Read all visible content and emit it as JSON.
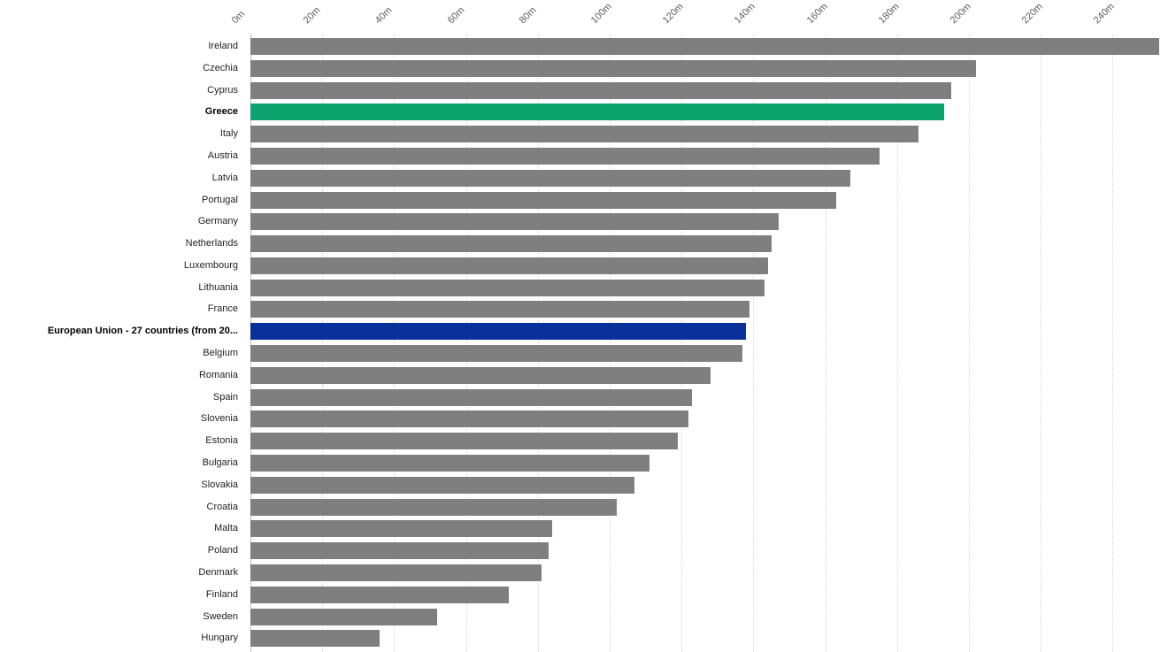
{
  "chart_data": {
    "type": "bar",
    "orientation": "horizontal",
    "title": "",
    "xlabel": "",
    "ylabel": "",
    "value_unit_suffix": "m",
    "xlim": [
      0,
      255
    ],
    "grid": true,
    "legend": false,
    "x_tick_values": [
      0,
      20,
      40,
      60,
      80,
      100,
      120,
      140,
      160,
      180,
      200,
      220,
      240
    ],
    "x_tick_labels": [
      "0m",
      "20m",
      "40m",
      "60m",
      "80m",
      "100m",
      "120m",
      "140m",
      "160m",
      "180m",
      "200m",
      "220m",
      "240m"
    ],
    "categories": [
      "Ireland",
      "Czechia",
      "Cyprus",
      "Greece",
      "Italy",
      "Austria",
      "Latvia",
      "Portugal",
      "Germany",
      "Netherlands",
      "Luxembourg",
      "Lithuania",
      "France",
      "European Union - 27 countries (from 20...",
      "Belgium",
      "Romania",
      "Spain",
      "Slovenia",
      "Estonia",
      "Bulgaria",
      "Slovakia",
      "Croatia",
      "Malta",
      "Poland",
      "Denmark",
      "Finland",
      "Sweden",
      "Hungary"
    ],
    "values": [
      253,
      202,
      195,
      193,
      186,
      175,
      167,
      163,
      147,
      145,
      144,
      143,
      139,
      138,
      137,
      128,
      123,
      122,
      119,
      111,
      107,
      102,
      84,
      83,
      81,
      72,
      52,
      36
    ],
    "highlighted": [
      {
        "category": "Greece",
        "color_key": "green",
        "bold_label": true
      },
      {
        "category": "European Union - 27 countries (from 20...",
        "color_key": "blue",
        "bold_label": true
      }
    ]
  },
  "colors": {
    "bar_default": "#7f7f7f",
    "green": "#0da36e",
    "blue": "#0a309c",
    "grid": "#d4d4d4",
    "axis_line": "#bfbfbf",
    "tick_text": "#5f5f5f",
    "label_text": "#1f1f1f",
    "background": "#ffffff"
  }
}
